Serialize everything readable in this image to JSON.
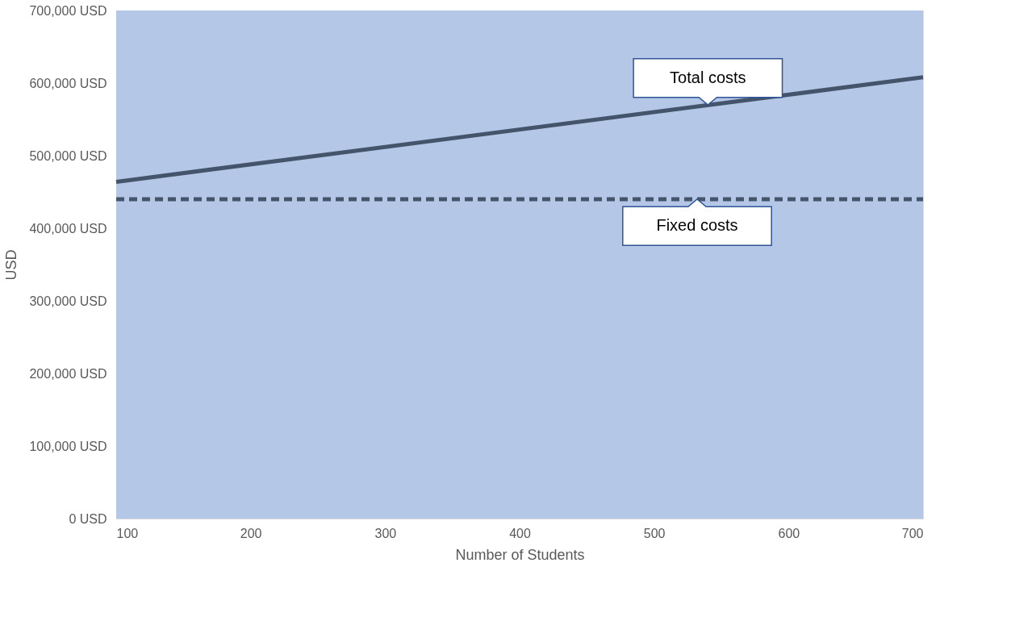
{
  "chart_data": {
    "type": "line",
    "xlabel": "Number of Students",
    "ylabel": "USD",
    "series": [
      {
        "color": "#44546a",
        "line_style": "solid",
        "values": [
          464000,
          608000
        ]
      },
      {
        "color": "#44546a",
        "line_style": "dashed",
        "values": [
          440000,
          440000
        ]
      }
    ],
    "x": [
      100,
      700
    ],
    "annotations": [
      {
        "text": "Total costs",
        "x": 540,
        "y": 570000
      },
      {
        "text": "Fixed costs",
        "x": 532,
        "y": 440000
      }
    ],
    "bands": [
      {
        "axis": "y",
        "from": 0,
        "to": 700000,
        "color": "#b4c7e7"
      }
    ],
    "xlim": [
      100,
      700
    ],
    "xticks": [
      100,
      200,
      300,
      400,
      500,
      600,
      700
    ],
    "ylim": [
      0,
      700000
    ],
    "yticks": [
      {
        "value": 0,
        "label": "0 USD"
      },
      {
        "value": 100000,
        "label": "100,000 USD"
      },
      {
        "value": 200000,
        "label": "200,000 USD"
      },
      {
        "value": 300000,
        "label": "300,000 USD"
      },
      {
        "value": 400000,
        "label": "400,000 USD"
      },
      {
        "value": 500000,
        "label": "500,000 USD"
      },
      {
        "value": 600000,
        "label": "600,000 USD"
      },
      {
        "value": 700000,
        "label": "700,000 USD"
      }
    ],
    "grid": false,
    "legend": false,
    "marker": "none"
  }
}
